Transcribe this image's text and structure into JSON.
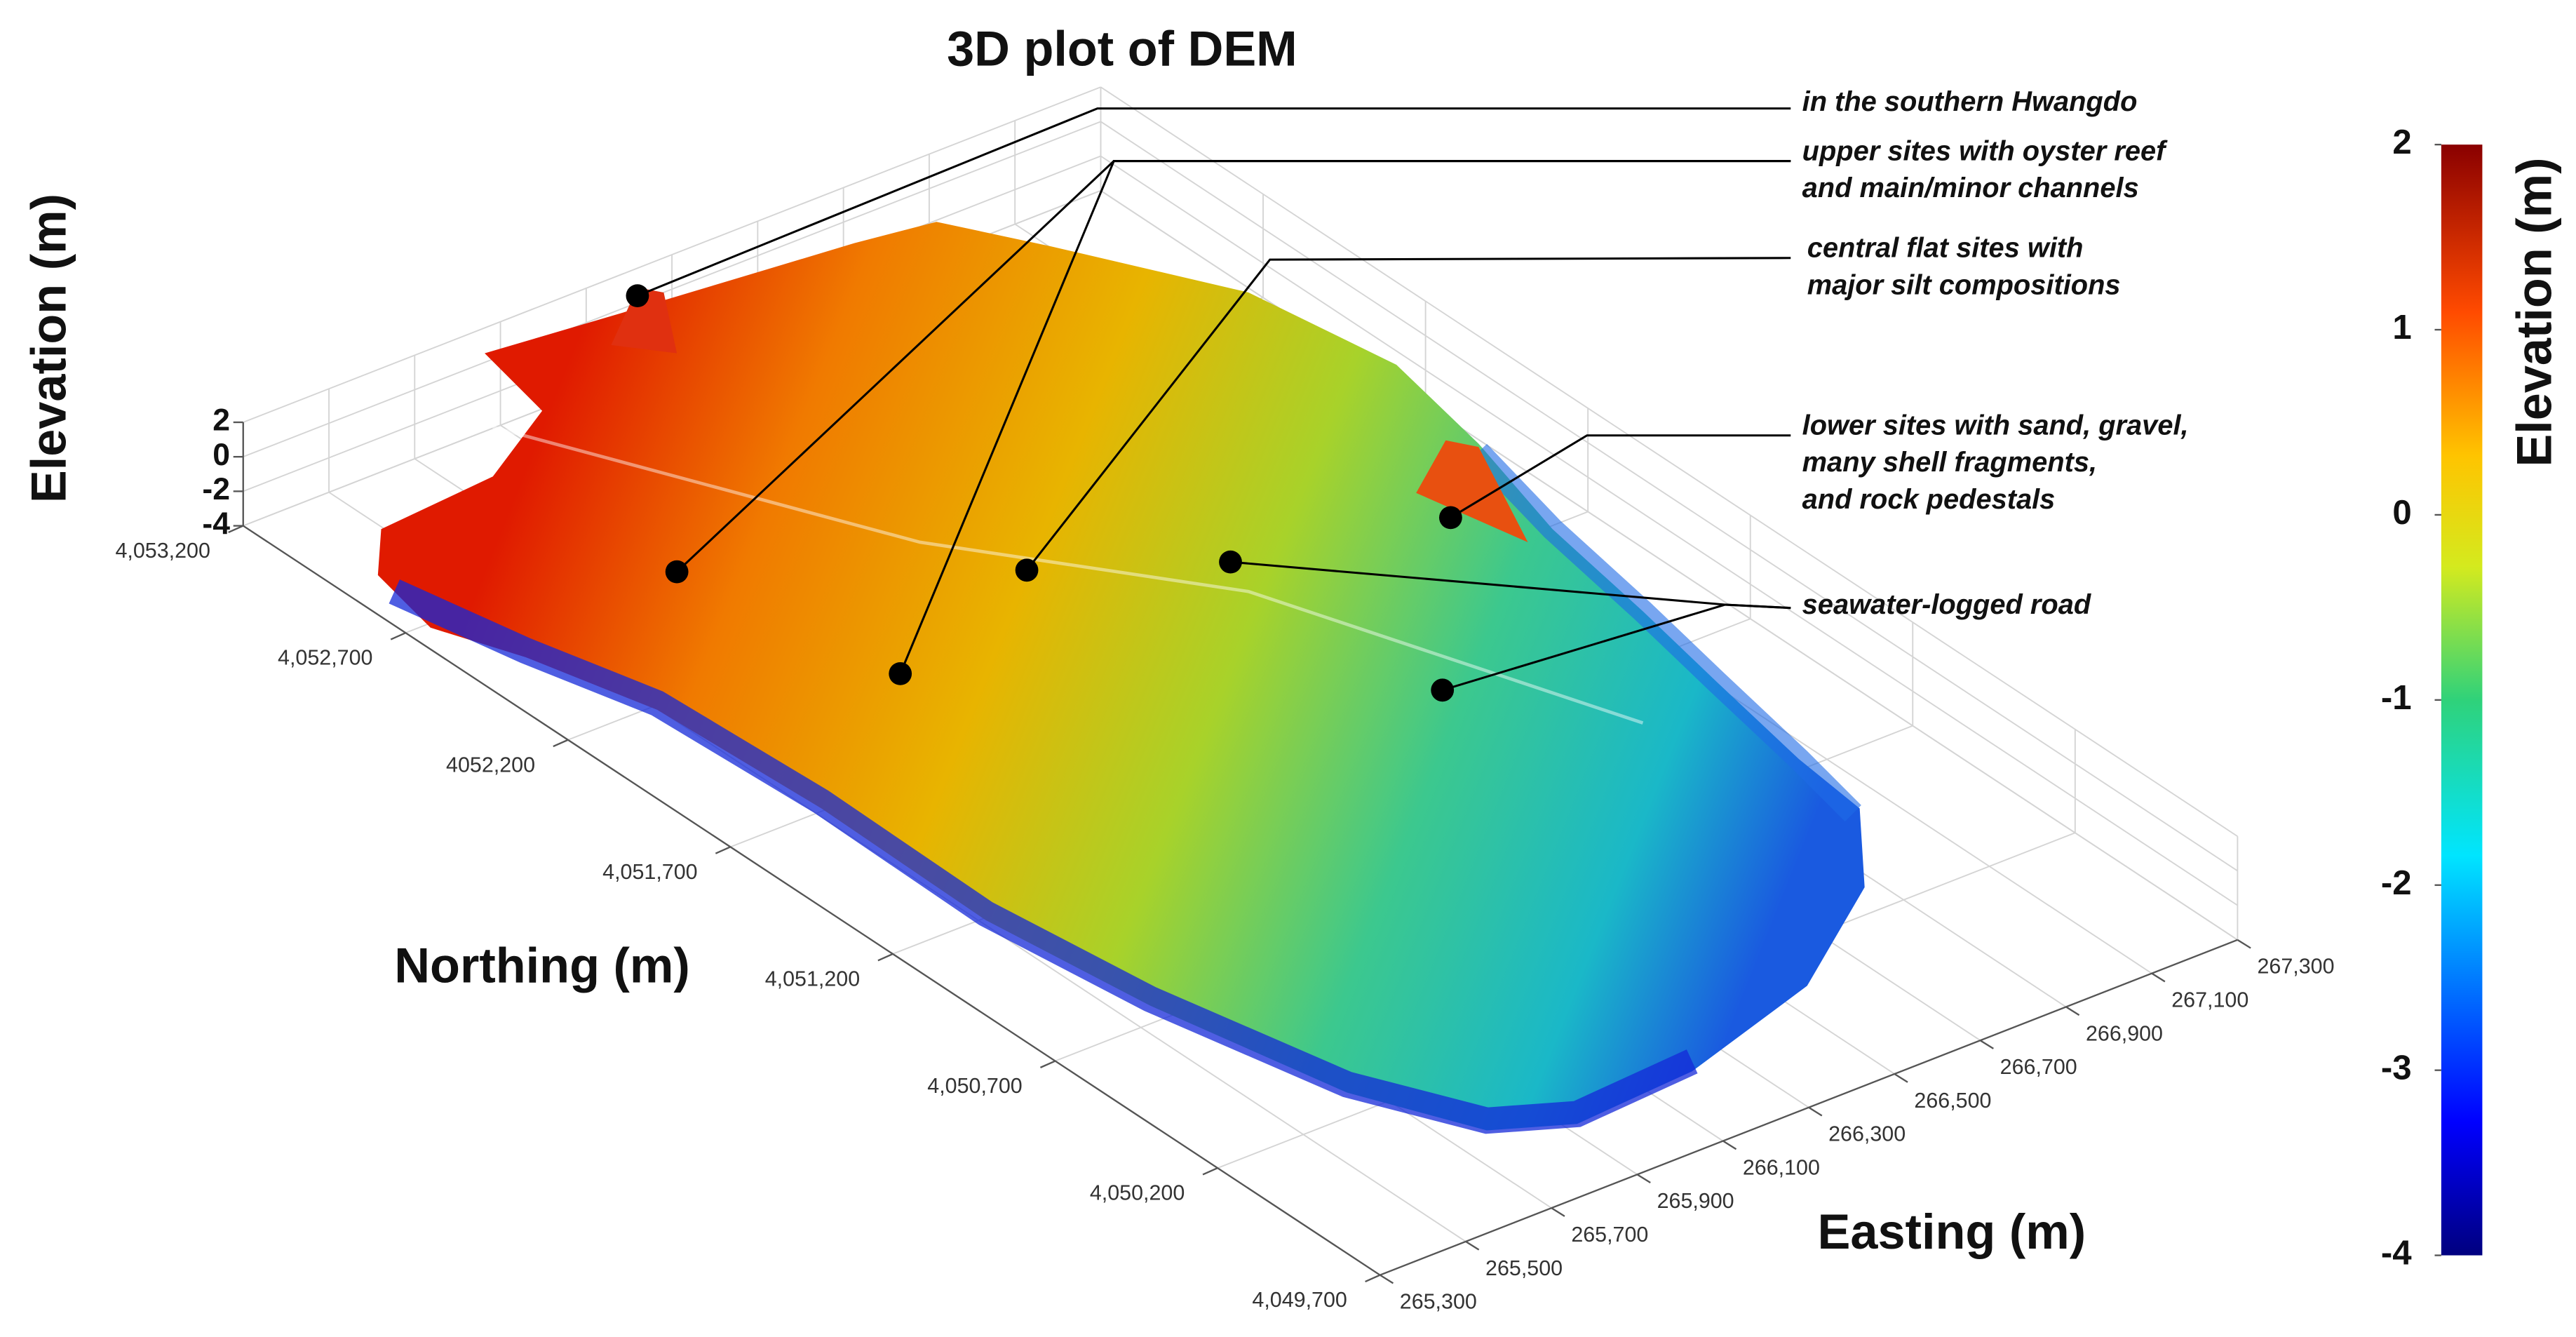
{
  "chart_data": {
    "type": "surface3d",
    "title": "3D plot of DEM",
    "xlabel": "Easting (m)",
    "ylabel": "Northing (m)",
    "zlabel": "Elevation (m)",
    "colorbar_label": "Elevation (m)",
    "colormap": "jet",
    "xlim": [
      265300,
      267300
    ],
    "xticks": [
      {
        "value": 265300,
        "label": "265,300"
      },
      {
        "value": 265500,
        "label": "265,500"
      },
      {
        "value": 265700,
        "label": "265,700"
      },
      {
        "value": 265900,
        "label": "265,900"
      },
      {
        "value": 266100,
        "label": "266,100"
      },
      {
        "value": 266300,
        "label": "266,300"
      },
      {
        "value": 266500,
        "label": "266,500"
      },
      {
        "value": 266700,
        "label": "266,700"
      },
      {
        "value": 266900,
        "label": "266,900"
      },
      {
        "value": 267100,
        "label": "267,100"
      },
      {
        "value": 267300,
        "label": "267,300"
      }
    ],
    "ylim": [
      4049700,
      4053200
    ],
    "yticks": [
      {
        "value": 4049700,
        "label": "4,049,700"
      },
      {
        "value": 4050200,
        "label": "4,050,200"
      },
      {
        "value": 4050700,
        "label": "4,050,700"
      },
      {
        "value": 4051200,
        "label": "4,051,200"
      },
      {
        "value": 4051700,
        "label": "4,051,700"
      },
      {
        "value": 4052200,
        "label": "4052,200"
      },
      {
        "value": 4052700,
        "label": "4,052,700"
      },
      {
        "value": 4053200,
        "label": "4,053,200"
      }
    ],
    "zlim": [
      -4,
      2
    ],
    "zticks": [
      2,
      0,
      -2,
      -4
    ],
    "clim": [
      -4,
      2
    ],
    "cticks": [
      2,
      1,
      0,
      -1,
      -2,
      -3,
      -4
    ],
    "grid": true,
    "annotations": [
      {
        "lines": [
          "in the southern Hwangdo"
        ]
      },
      {
        "lines": [
          "upper sites with oyster reef",
          "and main/minor channels"
        ]
      },
      {
        "lines": [
          "central flat sites with",
          "major silt compositions"
        ]
      },
      {
        "lines": [
          "lower sites with sand, gravel,",
          "many shell fragments,",
          "and rock pedestals"
        ]
      },
      {
        "lines": [
          "seawater-logged road"
        ]
      }
    ]
  }
}
